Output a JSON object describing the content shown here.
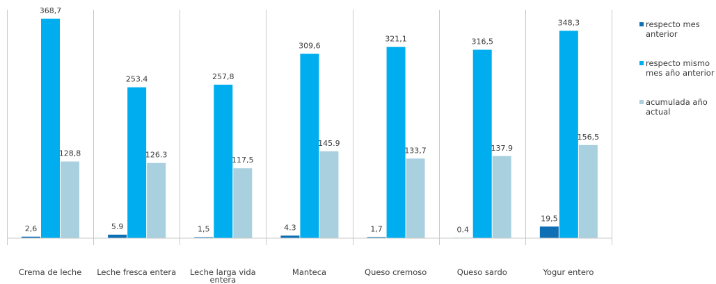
{
  "chart_data": {
    "type": "bar",
    "categories": [
      [
        "Crema de leche"
      ],
      [
        "Leche fresca entera"
      ],
      [
        "Leche larga vida",
        "entera"
      ],
      [
        "Manteca"
      ],
      [
        "Queso cremoso"
      ],
      [
        "Queso sardo"
      ],
      [
        "Yogur entero"
      ]
    ],
    "series": [
      {
        "name": "respecto mes anterior",
        "color": "#0e6fb5",
        "values": [
          2.6,
          5.9,
          1.5,
          4.3,
          1.7,
          0.4,
          19.5
        ],
        "labels": [
          "2,6",
          "5.9",
          "1,5",
          "4.3",
          "1,7",
          "0.4",
          "19,5"
        ]
      },
      {
        "name": "respecto mismo mes año anterior",
        "color": "#00aeef",
        "values": [
          368.7,
          253.4,
          257.8,
          309.6,
          321.1,
          316.5,
          348.3
        ],
        "labels": [
          "368,7",
          "253.4",
          "257,8",
          "309,6",
          "321,1",
          "316,5",
          "348,3"
        ]
      },
      {
        "name": "acumulada año actual",
        "color": "#a9d0de",
        "values": [
          128.8,
          126.3,
          117.5,
          145.9,
          133.7,
          137.9,
          156.5
        ],
        "labels": [
          "128,8",
          "126.3",
          "117,5",
          "145.9",
          "133,7",
          "137.9",
          "156,5"
        ]
      }
    ],
    "legend": {
      "position": "right",
      "items": [
        [
          "respecto mes",
          "anterior"
        ],
        [
          "respecto mismo",
          "mes año anterior"
        ],
        [
          "acumulada año",
          "actual"
        ]
      ]
    },
    "ylim": [
      0,
      400
    ],
    "grid": false
  }
}
